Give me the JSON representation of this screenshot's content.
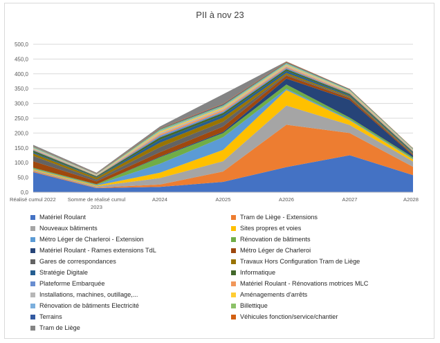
{
  "chart_data": {
    "type": "area",
    "stacked": true,
    "title": "PII à nov 23",
    "xlabel": "",
    "ylabel": "",
    "ylim": [
      0,
      500
    ],
    "yticks": [
      "0,0",
      "50,0",
      "100,0",
      "150,0",
      "200,0",
      "250,0",
      "300,0",
      "350,0",
      "400,0",
      "450,0",
      "500,0"
    ],
    "categories": [
      "Réalisé cumul 2022",
      "Somme de réalisé cumul 2023",
      "A2024",
      "A2025",
      "A2026",
      "A2027",
      "A2028"
    ],
    "grid": true,
    "legend_position": "bottom",
    "series": [
      {
        "name": "Matériel Roulant",
        "color": "#4472c4",
        "values": [
          68,
          14,
          18,
          35,
          85,
          125,
          58
        ]
      },
      {
        "name": "Tram de Liège - Extensions",
        "color": "#ed7d31",
        "values": [
          3,
          2,
          8,
          35,
          143,
          75,
          28
        ]
      },
      {
        "name": "Nouveaux bâtiments",
        "color": "#a5a5a5",
        "values": [
          4,
          4,
          22,
          35,
          65,
          27,
          18
        ]
      },
      {
        "name": "Sites propres et voies",
        "color": "#ffc000",
        "values": [
          3,
          3,
          18,
          38,
          52,
          16,
          7
        ]
      },
      {
        "name": "Métro Léger de Charleroi - Extension",
        "color": "#5b9bd5",
        "values": [
          2,
          2,
          30,
          43,
          5,
          3,
          2
        ]
      },
      {
        "name": "Rénovation de bâtiments",
        "color": "#70ad47",
        "values": [
          3,
          2,
          22,
          14,
          14,
          6,
          5
        ]
      },
      {
        "name": "Matériel Roulant - Rames extensions TdL",
        "color": "#264478",
        "values": [
          0,
          0,
          2,
          4,
          20,
          60,
          6
        ]
      },
      {
        "name": "Métro Léger de Charleroi",
        "color": "#9e480e",
        "values": [
          22,
          10,
          15,
          18,
          10,
          6,
          3
        ]
      },
      {
        "name": "Gares de correspondances",
        "color": "#636363",
        "values": [
          18,
          6,
          17,
          16,
          4,
          3,
          2
        ]
      },
      {
        "name": "Travaux Hors Configuration Tram de Liège",
        "color": "#997300",
        "values": [
          8,
          6,
          15,
          14,
          5,
          3,
          2
        ]
      },
      {
        "name": "Stratégie Digitale",
        "color": "#255e91",
        "values": [
          4,
          2,
          10,
          9,
          7,
          4,
          3
        ]
      },
      {
        "name": "Informatique",
        "color": "#43682b",
        "values": [
          6,
          3,
          8,
          7,
          6,
          4,
          3
        ]
      },
      {
        "name": "Plateforme Embarquée",
        "color": "#698ed0",
        "values": [
          2,
          1,
          6,
          5,
          4,
          2,
          1
        ]
      },
      {
        "name": "Matériel Roulant - Rénovations motrices MLC",
        "color": "#f1975a",
        "values": [
          2,
          1,
          5,
          5,
          4,
          3,
          2
        ]
      },
      {
        "name": "Installations, machines, outillage,...",
        "color": "#b7b7b7",
        "values": [
          3,
          2,
          5,
          5,
          4,
          3,
          2
        ]
      },
      {
        "name": "Aménagements d'arrêts",
        "color": "#ffcd33",
        "values": [
          1,
          1,
          4,
          4,
          3,
          2,
          1
        ]
      },
      {
        "name": "Rénovation de bâtiments Electricité",
        "color": "#7cafdd",
        "values": [
          2,
          1,
          3,
          3,
          3,
          2,
          2
        ]
      },
      {
        "name": "Billettique",
        "color": "#8cc168",
        "values": [
          2,
          1,
          4,
          4,
          3,
          2,
          2
        ]
      },
      {
        "name": "Terrains",
        "color": "#335aa1",
        "values": [
          1,
          1,
          2,
          3,
          2,
          2,
          1
        ]
      },
      {
        "name": "Véhicules fonction/service/chantier",
        "color": "#d26012",
        "values": [
          1,
          1,
          2,
          2,
          2,
          1,
          1
        ]
      },
      {
        "name": "Tram de Liège",
        "color": "#848484",
        "values": [
          5,
          3,
          6,
          32,
          1,
          0,
          0
        ]
      }
    ]
  }
}
